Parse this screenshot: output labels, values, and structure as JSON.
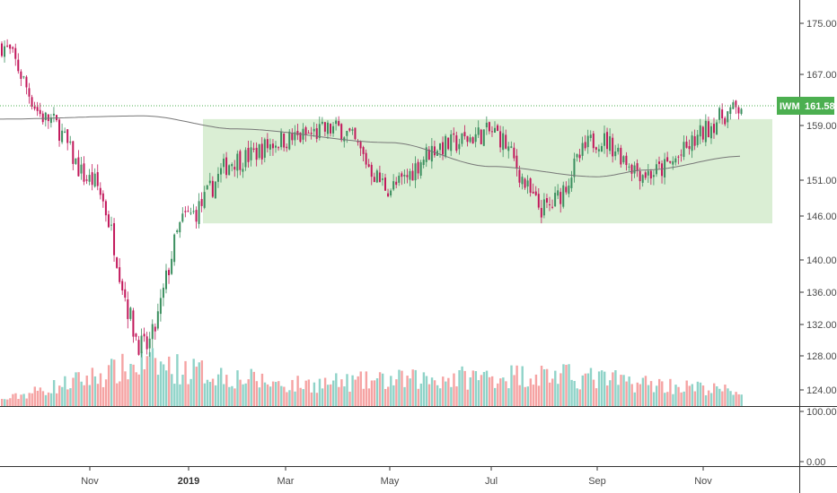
{
  "colors": {
    "up": "#26a69a",
    "down": "#ef5350",
    "up_candle": "#3b8f5f",
    "down_candle": "#c2185b",
    "volume_up": "#8fd3c8",
    "volume_down": "#f5a3a3",
    "ma_line": "#777777",
    "range_box": "#cde8c6",
    "price_marker_bg": "#4caf50",
    "guide_line": "#4caf50"
  },
  "symbol_marker": {
    "symbol": "IWM",
    "price": "161.58"
  },
  "chart_data": {
    "type": "candlestick",
    "title": "",
    "y_ticks": [
      "175.00",
      "167.00",
      "159.00",
      "151.00",
      "146.00",
      "140.00",
      "136.00",
      "132.00",
      "128.00",
      "124.00"
    ],
    "volume_ticks": [
      "100.00",
      "0.00"
    ],
    "x_ticks": [
      {
        "label": "Nov",
        "bold": false
      },
      {
        "label": "2019",
        "bold": true
      },
      {
        "label": "Mar",
        "bold": false
      },
      {
        "label": "May",
        "bold": false
      },
      {
        "label": "Jul",
        "bold": false
      },
      {
        "label": "Sep",
        "bold": false
      },
      {
        "label": "Nov",
        "bold": false
      }
    ],
    "last_price": 161.58,
    "range_box": {
      "from": "Jan 2019",
      "to": "Nov 2019",
      "low": 145.0,
      "high": 160.0
    },
    "series": [
      {
        "name": "price",
        "type": "candlestick",
        "key_points": [
          {
            "x": "Sep 2018",
            "close": 171.5
          },
          {
            "x": "Oct 2018",
            "close": 160.0
          },
          {
            "x": "Nov 2018",
            "close": 151.0
          },
          {
            "x": "Dec 2018",
            "close": 129.0
          },
          {
            "x": "Jan 2019",
            "close": 146.0
          },
          {
            "x": "Feb 2019",
            "close": 154.0
          },
          {
            "x": "Mar 2019",
            "close": 157.0
          },
          {
            "x": "Apr 2019",
            "close": 158.5
          },
          {
            "x": "May 2019",
            "close": 150.0
          },
          {
            "x": "Jun 2019",
            "close": 156.0
          },
          {
            "x": "Jul 2019",
            "close": 158.0
          },
          {
            "x": "Aug 2019",
            "close": 147.0
          },
          {
            "x": "Sep 2019",
            "close": 157.0
          },
          {
            "x": "Oct 2019",
            "close": 152.0
          },
          {
            "x": "Nov 2019",
            "close": 161.58
          }
        ]
      },
      {
        "name": "moving average",
        "type": "line",
        "key_points": [
          {
            "x": "Sep 2018",
            "y": 160.0
          },
          {
            "x": "Dec 2018",
            "y": 160.5
          },
          {
            "x": "Feb 2019",
            "y": 158.5
          },
          {
            "x": "May 2019",
            "y": 156.5
          },
          {
            "x": "Jul 2019",
            "y": 153.0
          },
          {
            "x": "Sep 2019",
            "y": 151.5
          },
          {
            "x": "Oct 2019",
            "y": 152.5
          },
          {
            "x": "Nov 2019",
            "y": 154.5
          }
        ]
      },
      {
        "name": "volume",
        "type": "bar",
        "note": "relative daily volume, 0..1",
        "key_points": [
          {
            "x": "Oct 2018",
            "v": 0.25
          },
          {
            "x": "Dec 2018",
            "v": 0.6
          },
          {
            "x": "Mar 2019",
            "v": 0.3
          },
          {
            "x": "Aug 2019",
            "v": 0.45
          },
          {
            "x": "Nov 2019",
            "v": 0.2
          }
        ]
      }
    ]
  }
}
